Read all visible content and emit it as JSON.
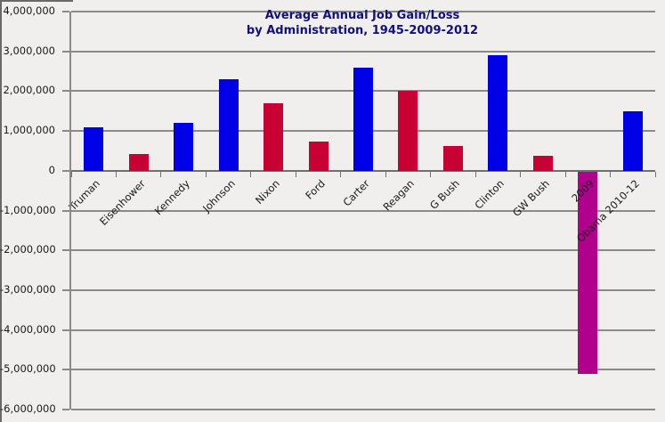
{
  "chart_data": {
    "type": "bar",
    "title": "Average Annual Job Gain/Loss by Administration, 1945-2009-2012",
    "title_lines": [
      "Average Annual Job Gain/Loss",
      "by Administration, 1945-2009-2012"
    ],
    "xlabel": "",
    "ylabel": "",
    "categories": [
      "Truman",
      "Eisenhower",
      "Kennedy",
      "Johnson",
      "Nixon",
      "Ford",
      "Carter",
      "Reagan",
      "G Bush",
      "Clinton",
      "GW Bush",
      "2009",
      "Obama 2010-12"
    ],
    "values": [
      1100000,
      420000,
      1200000,
      2300000,
      1700000,
      730000,
      2600000,
      2000000,
      620000,
      2900000,
      375000,
      -5100000,
      1500000
    ],
    "bar_color_keys": [
      "democrat",
      "republican",
      "democrat",
      "democrat",
      "republican",
      "republican",
      "democrat",
      "republican",
      "republican",
      "democrat",
      "republican",
      "loss_2009",
      "democrat"
    ],
    "palette": {
      "democrat": "#0000e6",
      "republican": "#c90033",
      "loss_2009": "#b0008c"
    },
    "ylim": [
      -6000000,
      4000000
    ],
    "y_ticks": [
      {
        "value": 4000000,
        "label": "4,000,000"
      },
      {
        "value": 3000000,
        "label": "3,000,000"
      },
      {
        "value": 2000000,
        "label": "2,000,000"
      },
      {
        "value": 1000000,
        "label": "1,000,000"
      },
      {
        "value": 0,
        "label": "0"
      },
      {
        "value": -1000000,
        "label": "-1,000,000"
      },
      {
        "value": -2000000,
        "label": "-2,000,000"
      },
      {
        "value": -3000000,
        "label": "-3,000,000"
      },
      {
        "value": -4000000,
        "label": "-4,000,000"
      },
      {
        "value": -5000000,
        "label": "-5,000,000"
      },
      {
        "value": -6000000,
        "label": "-6,000,000"
      }
    ],
    "grid": "horizontal",
    "legend": "none",
    "colors": {
      "background": "#f0efee",
      "gridline": "#8a8a8a",
      "zero_line": "#6f6f6f",
      "title_text": "#10107e",
      "axis_text": "#1a1a1a",
      "frame": "#696969"
    }
  }
}
